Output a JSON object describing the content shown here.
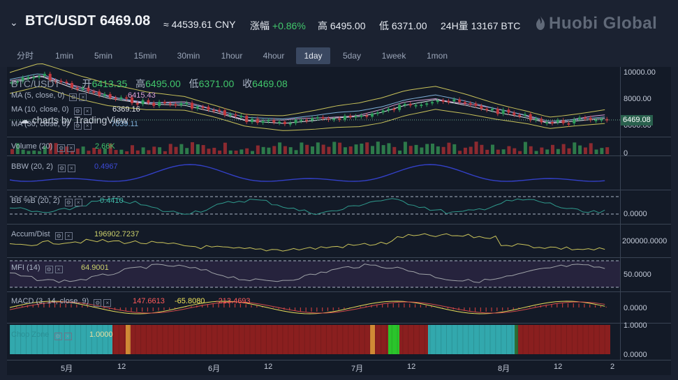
{
  "header": {
    "pair": "BTC/USDT",
    "last_price": "6469.08",
    "cny": "≈ 44539.61 CNY",
    "change_label": "涨幅",
    "change_value": "+0.86%",
    "high_label": "高",
    "high_value": "6495.00",
    "low_label": "低",
    "low_value": "6371.00",
    "volume_label": "24H量",
    "volume_value": "13167 BTC",
    "brand": "Huobi Global"
  },
  "toolbar": {
    "intervals": [
      "分时",
      "1min",
      "5min",
      "15min",
      "30min",
      "1hour",
      "4hour",
      "1day",
      "5day",
      "1week",
      "1mon"
    ],
    "active_interval": "1day",
    "icons": [
      "gear-icon",
      "indicators-icon",
      "fullscreen-icon"
    ]
  },
  "main_pane": {
    "symbol": "BTC/USDT",
    "open_label": "开",
    "open": "6413.35",
    "high_label": "高",
    "high": "6495.00",
    "low_label": "低",
    "low": "6371.00",
    "close_label": "收",
    "close": "6469.08",
    "ma5_label": "MA (5, close, 0)",
    "ma5_value": "6415.43",
    "ma10_label": "MA (10, close, 0)",
    "ma10_value": "6369.16",
    "ma30_label": "MA (30, close, 0)",
    "ma30_value": "7039.11",
    "watermark": "charts by TradingView"
  },
  "price_axis": {
    "ticks": [
      "10000.00",
      "8000.00",
      "6000.00"
    ],
    "current_price_tag": "6469.08"
  },
  "volume_pane": {
    "label": "Volume (20)",
    "value": "2.66K",
    "axis_tick": "0"
  },
  "bbw_pane": {
    "label": "BBW (20, 2)",
    "value": "0.4967"
  },
  "bbpb_pane": {
    "label": "BB %B (20, 2)",
    "value": "0.4410",
    "axis_tick": "0.0000"
  },
  "accum_pane": {
    "label": "Accum/Dist",
    "value": "196902.7237",
    "axis_tick": "200000.0000"
  },
  "mfi_pane": {
    "label": "MFI (14)",
    "value": "64.9001",
    "axis_tick": "50.0000"
  },
  "macd_pane": {
    "label": "MACD (3, 14, close, 9)",
    "value_hist": "147.6613",
    "value_macd": "-65.8080",
    "value_signal": "-213.4693",
    "axis_tick": "0.0000"
  },
  "chop_pane": {
    "label": "Chop Zone",
    "value": "1.0000",
    "axis_top": "1.0000",
    "axis_bottom": "0.0000"
  },
  "x_axis": {
    "ticks": [
      "5月",
      "12",
      "6月",
      "12",
      "7月",
      "12",
      "8月",
      "12",
      "2"
    ]
  },
  "colors": {
    "up": "#2d9e5a",
    "down": "#c0373c",
    "accent": "#3a4861",
    "price_tag": "#29604d"
  }
}
